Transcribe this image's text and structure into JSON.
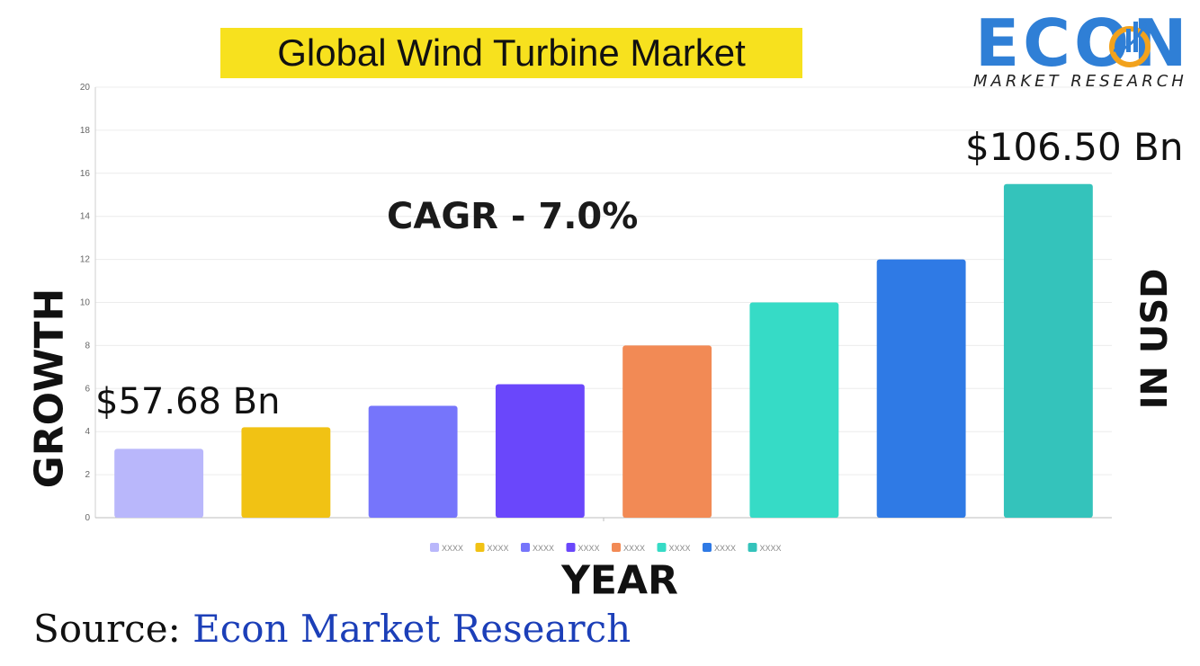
{
  "header": {
    "title": "Global Wind Turbine Market",
    "logo_word": "ECON",
    "logo_sub": "MARKET RESEARCH"
  },
  "annotations": {
    "cagr": "CAGR - 7.0%",
    "start_value": "$57.68 Bn",
    "end_value": "$106.50 Bn"
  },
  "axis_titles": {
    "y_left": "GROWTH",
    "y_right": "IN USD",
    "x": "YEAR"
  },
  "footer": {
    "source_prefix": "Source: ",
    "source_name": "Econ Market Research"
  },
  "colors": {
    "highlight": "#f7e11e",
    "logo_blue": "#2f7fd6",
    "logo_orange": "#f2a21c",
    "source_blue": "#1c3fb8"
  },
  "chart_data": {
    "type": "bar",
    "categories": [
      "XXXX",
      "XXXX",
      "XXXX",
      "XXXX",
      "XXXX",
      "XXXX",
      "XXXX",
      "XXXX"
    ],
    "values": [
      3.2,
      4.2,
      5.2,
      6.2,
      8,
      10,
      12,
      15.5
    ],
    "colors": [
      "#b9b7fb",
      "#f1c214",
      "#7675fb",
      "#6a47fb",
      "#f28a55",
      "#36dbc6",
      "#2f7ae5",
      "#34c3bb"
    ],
    "ylim": [
      0,
      20
    ],
    "yticks": [
      0,
      2,
      4,
      6,
      8,
      10,
      12,
      14,
      16,
      18,
      20
    ],
    "grid": true,
    "legend": "bottom"
  }
}
